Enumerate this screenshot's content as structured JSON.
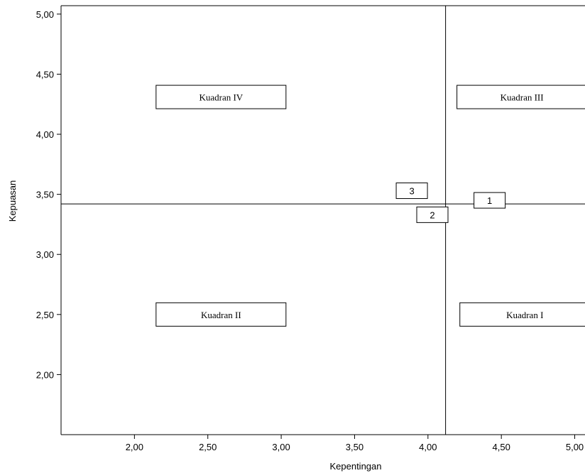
{
  "chart_data": {
    "type": "scatter",
    "title": "",
    "xlabel": "Kepentingan",
    "ylabel": "Kepuasan",
    "xlim": [
      1.5,
      5.07
    ],
    "ylim": [
      1.5,
      5.07
    ],
    "xticks": [
      2.0,
      2.5,
      3.0,
      3.5,
      4.0,
      4.5,
      5.0
    ],
    "xtick_labels": [
      "2,00",
      "2,50",
      "3,00",
      "3,50",
      "4,00",
      "4,50",
      "5,00"
    ],
    "yticks": [
      2.0,
      2.5,
      3.0,
      3.5,
      4.0,
      4.5,
      5.0
    ],
    "ytick_labels": [
      "2,00",
      "2,50",
      "3,00",
      "3,50",
      "4,00",
      "4,50",
      "5,00"
    ],
    "reference_lines": {
      "x": 4.12,
      "y": 3.42
    },
    "points": [
      {
        "label": "1",
        "x": 4.42,
        "y": 3.45
      },
      {
        "label": "2",
        "x": 4.03,
        "y": 3.33
      },
      {
        "label": "3",
        "x": 3.89,
        "y": 3.53
      }
    ],
    "quadrant_labels": [
      {
        "text": "Kuadran IV",
        "x": 2.59,
        "y": 4.31
      },
      {
        "text": "Kuadran III",
        "x": 4.64,
        "y": 4.31
      },
      {
        "text": "Kuadran II",
        "x": 2.59,
        "y": 2.5
      },
      {
        "text": "Kuadran I",
        "x": 4.66,
        "y": 2.5
      }
    ],
    "grid": false,
    "legend": "none"
  }
}
